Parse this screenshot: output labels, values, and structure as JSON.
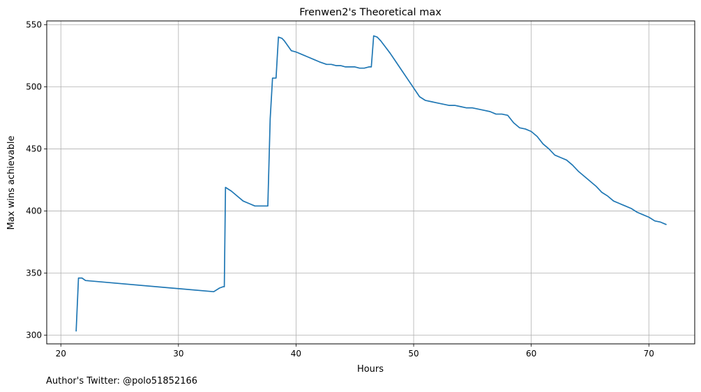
{
  "chart_data": {
    "type": "line",
    "title": "Frenwen2's Theoretical max",
    "xlabel": "Hours",
    "ylabel": "Max wins achievable",
    "xlim": [
      18.8,
      73.9
    ],
    "ylim": [
      293,
      553
    ],
    "xticks": [
      20,
      30,
      40,
      50,
      60,
      70
    ],
    "yticks": [
      300,
      350,
      400,
      450,
      500,
      550
    ],
    "grid": true,
    "line_color": "#1f77b4",
    "footnote": "Author's Twitter: @polo51852166",
    "series": [
      {
        "name": "Max wins achievable",
        "x": [
          21.3,
          21.5,
          21.8,
          22.1,
          33.0,
          33.5,
          33.8,
          33.9,
          34.0,
          34.5,
          35.0,
          35.5,
          36.0,
          36.5,
          36.8,
          37.2,
          37.5,
          37.6,
          37.8,
          38.0,
          38.3,
          38.5,
          38.8,
          39.0,
          39.3,
          39.6,
          40.0,
          40.5,
          41.0,
          41.5,
          42.0,
          42.3,
          42.6,
          43.0,
          43.4,
          43.8,
          44.2,
          44.6,
          45.0,
          45.4,
          45.8,
          46.2,
          46.4,
          46.6,
          46.9,
          47.2,
          47.6,
          48.0,
          48.5,
          49.0,
          49.5,
          50.0,
          50.5,
          51.0,
          51.5,
          52.0,
          52.5,
          53.0,
          53.5,
          54.0,
          54.5,
          55.0,
          55.5,
          56.0,
          56.5,
          57.0,
          57.5,
          58.0,
          58.5,
          59.0,
          59.5,
          60.0,
          60.5,
          61.0,
          61.5,
          62.0,
          62.5,
          63.0,
          63.5,
          64.0,
          64.5,
          65.0,
          65.5,
          66.0,
          66.5,
          67.0,
          67.5,
          68.0,
          68.5,
          69.0,
          69.5,
          70.0,
          70.5,
          71.0,
          71.5
        ],
        "y": [
          303,
          346,
          346,
          344,
          335,
          338,
          339,
          339,
          419,
          416,
          412,
          408,
          406,
          404,
          404,
          404,
          404,
          404,
          474,
          507,
          507,
          540,
          539,
          537,
          533,
          529,
          528,
          526,
          524,
          522,
          520,
          519,
          518,
          518,
          517,
          517,
          516,
          516,
          516,
          515,
          515,
          516,
          516,
          541,
          540,
          537,
          532,
          527,
          520,
          513,
          506,
          499,
          492,
          489,
          488,
          487,
          486,
          485,
          485,
          484,
          483,
          483,
          482,
          481,
          480,
          478,
          478,
          477,
          471,
          467,
          466,
          464,
          460,
          454,
          450,
          445,
          443,
          441,
          437,
          432,
          428,
          424,
          420,
          415,
          412,
          408,
          406,
          404,
          402,
          399,
          397,
          395,
          392,
          391,
          389
        ]
      }
    ]
  }
}
